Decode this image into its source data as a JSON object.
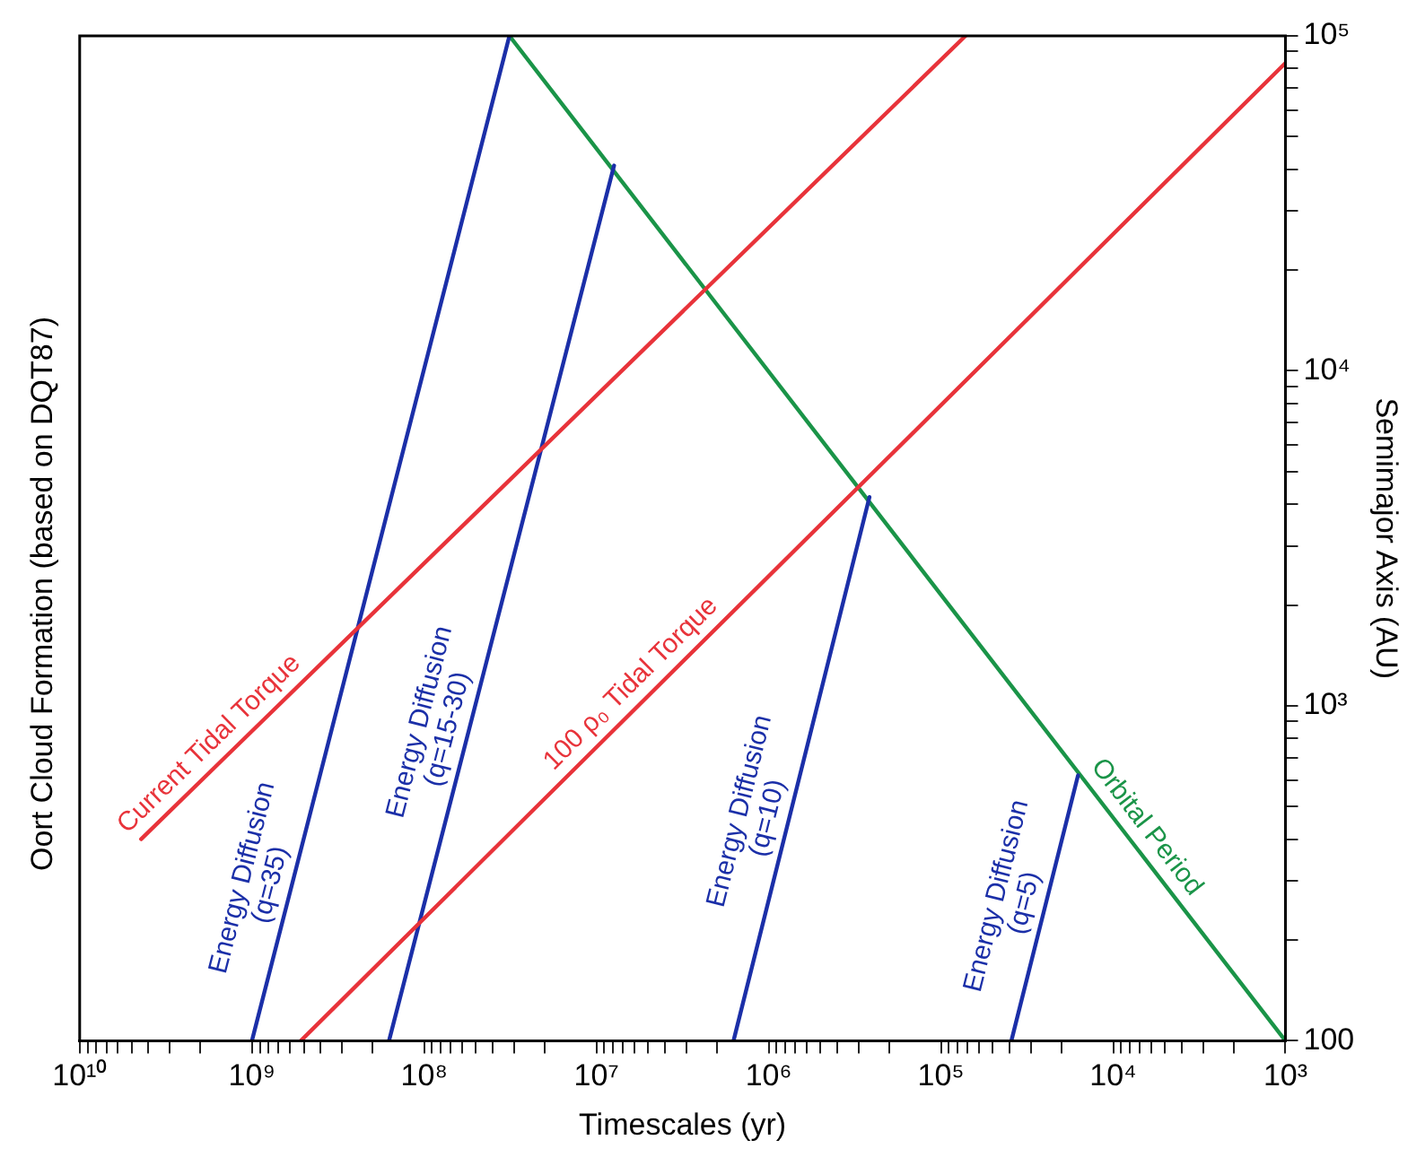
{
  "chart_data": {
    "type": "line",
    "title": "Oort Cloud Formation (based on DQT87)",
    "xlabel": "Timescales (yr)",
    "ylabel": "Semimajor Axis (AU)",
    "log": "xy",
    "marker": "none",
    "line_style": "solid",
    "legend": false,
    "xlim": [
      10000000000,
      1000
    ],
    "ylim": [
      100,
      100000
    ],
    "xticks": [
      {
        "value": 1000,
        "label": "10³"
      },
      {
        "value": 2000,
        "label": null
      },
      {
        "value": 3000,
        "label": null
      },
      {
        "value": 4000,
        "label": null
      },
      {
        "value": 5000,
        "label": null
      },
      {
        "value": 6000,
        "label": null
      },
      {
        "value": 7000,
        "label": null
      },
      {
        "value": 8000,
        "label": null
      },
      {
        "value": 9000,
        "label": null
      },
      {
        "value": 10000,
        "label": "10⁴"
      },
      {
        "value": 20000,
        "label": null
      },
      {
        "value": 30000,
        "label": null
      },
      {
        "value": 40000,
        "label": null
      },
      {
        "value": 50000,
        "label": null
      },
      {
        "value": 60000,
        "label": null
      },
      {
        "value": 70000,
        "label": null
      },
      {
        "value": 80000,
        "label": null
      },
      {
        "value": 90000,
        "label": null
      },
      {
        "value": 100000,
        "label": "10⁵"
      },
      {
        "value": 200000,
        "label": null
      },
      {
        "value": 300000,
        "label": null
      },
      {
        "value": 400000,
        "label": null
      },
      {
        "value": 500000,
        "label": null
      },
      {
        "value": 600000,
        "label": null
      },
      {
        "value": 700000,
        "label": null
      },
      {
        "value": 800000,
        "label": null
      },
      {
        "value": 900000,
        "label": null
      },
      {
        "value": 1000000,
        "label": "10⁶"
      },
      {
        "value": 2000000,
        "label": null
      },
      {
        "value": 3000000,
        "label": null
      },
      {
        "value": 4000000,
        "label": null
      },
      {
        "value": 5000000,
        "label": null
      },
      {
        "value": 6000000,
        "label": null
      },
      {
        "value": 7000000,
        "label": null
      },
      {
        "value": 8000000,
        "label": null
      },
      {
        "value": 9000000,
        "label": null
      },
      {
        "value": 10000000,
        "label": "10⁷"
      },
      {
        "value": 20000000,
        "label": null
      },
      {
        "value": 30000000,
        "label": null
      },
      {
        "value": 40000000,
        "label": null
      },
      {
        "value": 50000000,
        "label": null
      },
      {
        "value": 60000000,
        "label": null
      },
      {
        "value": 70000000,
        "label": null
      },
      {
        "value": 80000000,
        "label": null
      },
      {
        "value": 90000000,
        "label": null
      },
      {
        "value": 100000000,
        "label": "10⁸"
      },
      {
        "value": 200000000,
        "label": null
      },
      {
        "value": 300000000,
        "label": null
      },
      {
        "value": 400000000,
        "label": null
      },
      {
        "value": 500000000,
        "label": null
      },
      {
        "value": 600000000,
        "label": null
      },
      {
        "value": 700000000,
        "label": null
      },
      {
        "value": 800000000,
        "label": null
      },
      {
        "value": 900000000,
        "label": null
      },
      {
        "value": 1000000000,
        "label": "10⁹"
      },
      {
        "value": 2000000000,
        "label": null
      },
      {
        "value": 3000000000,
        "label": null
      },
      {
        "value": 4000000000,
        "label": null
      },
      {
        "value": 5000000000,
        "label": null
      },
      {
        "value": 6000000000,
        "label": null
      },
      {
        "value": 7000000000,
        "label": null
      },
      {
        "value": 8000000000,
        "label": null
      },
      {
        "value": 9000000000,
        "label": null
      },
      {
        "value": 10000000000,
        "label": "10¹⁰"
      }
    ],
    "yticks": [
      100,
      {
        "value": 200,
        "label": null
      },
      {
        "value": 300,
        "label": null
      },
      {
        "value": 400,
        "label": null
      },
      {
        "value": 500,
        "label": null
      },
      {
        "value": 600,
        "label": null
      },
      {
        "value": 700,
        "label": null
      },
      {
        "value": 800,
        "label": null
      },
      {
        "value": 900,
        "label": null
      },
      {
        "value": 1000,
        "label": "10³"
      },
      {
        "value": 2000,
        "label": null
      },
      {
        "value": 3000,
        "label": null
      },
      {
        "value": 4000,
        "label": null
      },
      {
        "value": 5000,
        "label": null
      },
      {
        "value": 6000,
        "label": null
      },
      {
        "value": 7000,
        "label": null
      },
      {
        "value": 8000,
        "label": null
      },
      {
        "value": 9000,
        "label": null
      },
      {
        "value": 10000,
        "label": "10⁴"
      },
      {
        "value": 20000,
        "label": null
      },
      {
        "value": 30000,
        "label": null
      },
      {
        "value": 40000,
        "label": null
      },
      {
        "value": 50000,
        "label": null
      },
      {
        "value": 60000,
        "label": null
      },
      {
        "value": 70000,
        "label": null
      },
      {
        "value": 80000,
        "label": null
      },
      {
        "value": 90000,
        "label": null
      },
      {
        "value": 100000,
        "label": "10⁵"
      }
    ],
    "series": [
      {
        "name": "Current Tidal Torque",
        "color": "#e8333a",
        "x": [
          4400000000,
          72000
        ],
        "values": [
          400,
          100000
        ]
      },
      {
        "name": "100 ρ₀ Tidal Torque",
        "color": "#e8333a",
        "x": [
          520000000,
          1000
        ],
        "values": [
          100,
          83000
        ]
      },
      {
        "name": "Energy Diffusion (q=35)",
        "color": "#1b2fa8",
        "x": [
          1000000000,
          32000000
        ],
        "values": [
          100,
          100000
        ]
      },
      {
        "name": "Energy Diffusion (q=15-30)",
        "color": "#1b2fa8",
        "x": [
          160000000,
          7900000
        ],
        "values": [
          100,
          41000
        ]
      },
      {
        "name": "Energy Diffusion (q=10)",
        "color": "#1b2fa8",
        "x": [
          1600000,
          260000
        ],
        "values": [
          100,
          4200
        ]
      },
      {
        "name": "Energy Diffusion (q=5)",
        "color": "#1b2fa8",
        "x": [
          39000,
          16000
        ],
        "values": [
          100,
          620
        ]
      },
      {
        "name": "Orbital Period",
        "color": "#1a9448",
        "x": [
          1000,
          32000000
        ],
        "values": [
          100,
          100000
        ]
      }
    ]
  }
}
